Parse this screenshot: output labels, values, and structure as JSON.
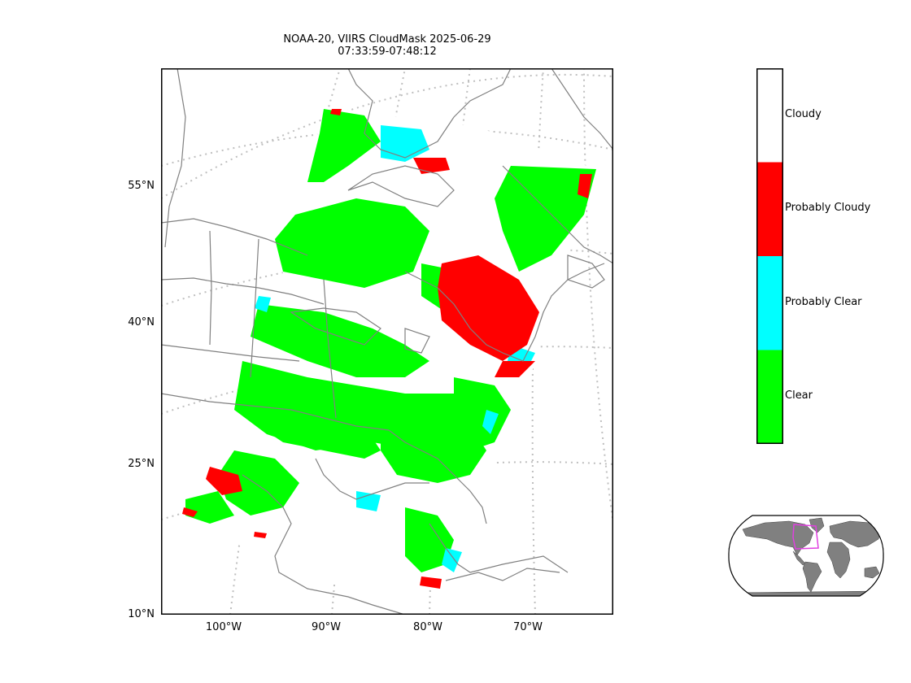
{
  "title": {
    "line1": "NOAA-20, VIIRS CloudMask 2025-06-29",
    "line2": "07:33:59-07:48:12"
  },
  "axes": {
    "lat_labels": [
      "55°N",
      "40°N",
      "25°N",
      "10°N"
    ],
    "lon_labels": [
      "100°W",
      "90°W",
      "80°W",
      "70°W"
    ]
  },
  "colorbar": {
    "classes": [
      {
        "label": "Cloudy",
        "color": "#ffffff"
      },
      {
        "label": "Probably Cloudy",
        "color": "#ff0000"
      },
      {
        "label": "Probably Clear",
        "color": "#00ffff"
      },
      {
        "label": "Clear",
        "color": "#00ff00"
      }
    ]
  },
  "colors": {
    "coastline": "#808080",
    "gridline": "#bfbfbf",
    "overview_box": "#e040e0",
    "overview_land": "#808080"
  }
}
